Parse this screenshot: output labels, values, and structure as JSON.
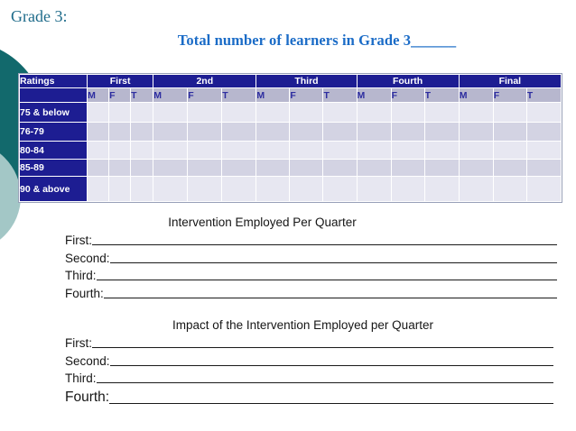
{
  "header": {
    "grade_label": "Grade 3:",
    "title": "Total number of learners in Grade 3______"
  },
  "table": {
    "ratings_header": "Ratings",
    "quarters": [
      {
        "label": "First"
      },
      {
        "label": "2nd"
      },
      {
        "label": "Third"
      },
      {
        "label": "Fourth"
      },
      {
        "label": "Final"
      }
    ],
    "subcolumns": [
      "M",
      "F",
      "T"
    ],
    "rating_rows": [
      "75 & below",
      "76-79",
      "80-84",
      "85-89",
      "90 & above"
    ],
    "cell_value": ""
  },
  "intervention": {
    "heading": "Intervention Employed Per Quarter",
    "lines": [
      "First:",
      "Second:",
      "Third:",
      "Fourth:"
    ]
  },
  "impact": {
    "heading": "Impact of the Intervention Employed per Quarter",
    "lines": [
      "First:",
      "Second:",
      "Third:",
      "Fourth:"
    ]
  },
  "colors": {
    "navy": "#1d1d92",
    "subheader_bg": "#b7b7ce",
    "row_light": "#e7e7f1",
    "row_dark": "#d3d3e3",
    "title_blue": "#1b6cc7",
    "grade_teal": "#1e6b8a",
    "circle_dark_teal": "#12696c",
    "circle_light_teal": "#a3c7c6"
  }
}
